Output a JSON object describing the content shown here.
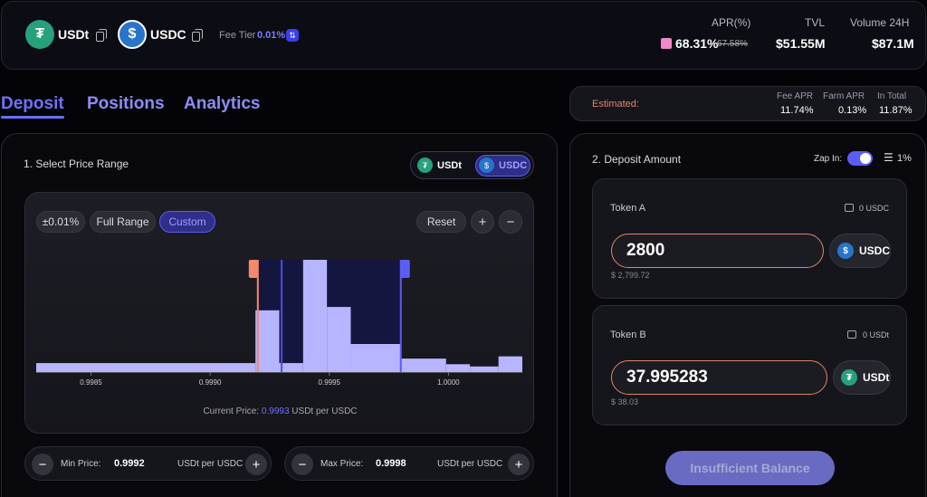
{
  "header": {
    "token_a": "USDt",
    "token_b": "USDC",
    "fee_tier_label": "Fee Tier",
    "fee_tier_value": "0.01%",
    "apr_label": "APR(%)",
    "apr_value": "68.31%",
    "apr_old": "67.58%",
    "tvl_label": "TVL",
    "tvl_value": "$51.55M",
    "volume_label": "Volume 24H",
    "volume_value": "$87.1M"
  },
  "tabs": [
    {
      "label": "Deposit",
      "active": true
    },
    {
      "label": "Positions",
      "active": false
    },
    {
      "label": "Analytics",
      "active": false
    }
  ],
  "estimated": {
    "label": "Estimated:",
    "fee_apr_label": "Fee APR",
    "fee_apr_value": "11.74%",
    "farm_apr_label": "Farm APR",
    "farm_apr_value": "0.13%",
    "total_label": "In Total",
    "total_value": "11.87%"
  },
  "range": {
    "title": "1. Select Price Range",
    "toggle_a": "USDt",
    "toggle_b": "USDC",
    "presets": [
      "±0.01%",
      "Full Range",
      "Custom"
    ],
    "reset_label": "Reset",
    "plus": "+",
    "minus": "−",
    "current_price_label": "Current Price:",
    "current_price_value": "0.9993",
    "current_price_unit": "USDt per USDC",
    "min_label": "Min Price:",
    "min_value": "0.9992",
    "max_label": "Max Price:",
    "max_value": "0.9998",
    "price_unit": "USDt per USDC"
  },
  "chart_data": {
    "type": "bar",
    "xlim": [
      0.99827,
      1.00031
    ],
    "tick_labels": [
      "0.9985",
      "0.9990",
      "0.9995",
      "1.0000"
    ],
    "tick_values": [
      0.9985,
      0.999,
      0.9995,
      1.0
    ],
    "bins": [
      {
        "x0": 0.99827,
        "x1": 0.99919,
        "h": 0.08
      },
      {
        "x0": 0.99919,
        "x1": 0.99929,
        "h": 0.55
      },
      {
        "x0": 0.99929,
        "x1": 0.99939,
        "h": 0.08
      },
      {
        "x0": 0.99939,
        "x1": 0.99949,
        "h": 1.0
      },
      {
        "x0": 0.99949,
        "x1": 0.99959,
        "h": 0.58
      },
      {
        "x0": 0.99959,
        "x1": 0.9998,
        "h": 0.25
      },
      {
        "x0": 0.9998,
        "x1": 0.99999,
        "h": 0.12
      },
      {
        "x0": 0.99999,
        "x1": 1.00009,
        "h": 0.07
      },
      {
        "x0": 1.00009,
        "x1": 1.00021,
        "h": 0.05
      },
      {
        "x0": 1.00021,
        "x1": 1.00031,
        "h": 0.14
      }
    ],
    "range_min": 0.9992,
    "range_max": 0.9998,
    "current_price": 0.9993,
    "colors": {
      "bar": "#b7b5ff",
      "range": "#15163f",
      "min_line": "#f5886a",
      "max_line": "#5b5df5",
      "current": "#4b4de8"
    }
  },
  "deposit": {
    "title": "2. Deposit Amount",
    "zap_label": "Zap In:",
    "slippage": "1%",
    "token_a_label": "Token A",
    "token_a_balance": "0 USDC",
    "token_a_amount": "2800",
    "token_a_symbol": "USDC",
    "token_a_usd": "$ 2,799.72",
    "token_b_label": "Token B",
    "token_b_balance": "0 USDt",
    "token_b_amount": "37.995283",
    "token_b_symbol": "USDt",
    "token_b_usd": "$ 38.03",
    "submit_label": "Insufficient Balance"
  },
  "colors": {
    "accent": "#6b6ef8",
    "usdt": "#26a17b",
    "usdc": "#2775ca",
    "warning": "#e2836c"
  }
}
